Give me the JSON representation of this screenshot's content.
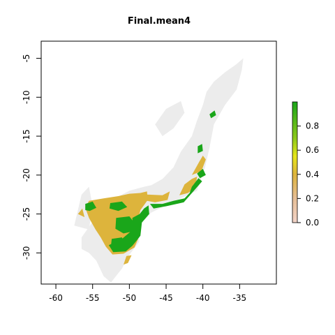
{
  "map": {
    "title": "Final.mean4",
    "x_axis": {
      "ticks": [
        -60,
        -55,
        -50,
        -45,
        -40,
        -35
      ],
      "labels": [
        "-60",
        "-55",
        "-50",
        "-45",
        "-40",
        "-35"
      ],
      "range": [
        -62,
        -30
      ]
    },
    "y_axis": {
      "ticks": [
        -5,
        -10,
        -15,
        -20,
        -25,
        -30
      ],
      "labels": [
        "-5",
        "-10",
        "-15",
        "-20",
        "-25",
        "-30"
      ],
      "range": [
        -34,
        -2.8
      ]
    }
  },
  "colorbar": {
    "range": [
      0.0,
      1.0
    ],
    "ticks": [
      "0.0",
      "0.2",
      "0.4",
      "0.6",
      "0.8"
    ],
    "colors": {
      "low": "#f2d3c8",
      "mid": "#ddb43c",
      "yellow": "#e6e61a",
      "high": "#1aa61a",
      "background_cell": "#ececec"
    }
  },
  "chart_data": {
    "type": "heatmap",
    "title": "Final.mean4",
    "xlabel": "",
    "ylabel": "",
    "xlim": [
      -62,
      -30
    ],
    "ylim": [
      -34,
      -2.8
    ],
    "value_range": [
      0.0,
      1.0
    ],
    "value_classes": [
      {
        "range": [
          0.0,
          0.05
        ],
        "color": "#ececec"
      },
      {
        "range": [
          0.3,
          0.5
        ],
        "color": "#ddb43c"
      },
      {
        "range": [
          0.8,
          1.0
        ],
        "color": "#1aa61a"
      }
    ],
    "regions": [
      {
        "value": 0.02,
        "points": [
          [
            -56.5,
            -28
          ],
          [
            -55,
            -26
          ],
          [
            -54,
            -24.5
          ],
          [
            -52,
            -23
          ],
          [
            -50,
            -22
          ],
          [
            -48,
            -21.5
          ],
          [
            -47,
            -21.3
          ],
          [
            -45.5,
            -20.5
          ],
          [
            -44,
            -19
          ],
          [
            -43,
            -17
          ],
          [
            -41.5,
            -15
          ],
          [
            -40.8,
            -13
          ],
          [
            -40,
            -11
          ],
          [
            -39.5,
            -9.3
          ],
          [
            -38.5,
            -8
          ],
          [
            -37,
            -6.8
          ],
          [
            -35.5,
            -5.8
          ],
          [
            -34.5,
            -5
          ],
          [
            -34.7,
            -6.5
          ],
          [
            -35.4,
            -9
          ],
          [
            -37,
            -11
          ],
          [
            -38.5,
            -13.5
          ],
          [
            -39.1,
            -16.5
          ],
          [
            -39.7,
            -19
          ],
          [
            -40.8,
            -22
          ],
          [
            -43.5,
            -23.2
          ],
          [
            -47,
            -24.8
          ],
          [
            -48.5,
            -26.3
          ],
          [
            -48.7,
            -28.6
          ],
          [
            -50.2,
            -30.5
          ],
          [
            -51,
            -32
          ],
          [
            -52.5,
            -33.8
          ],
          [
            -53.5,
            -33
          ],
          [
            -54.5,
            -31
          ],
          [
            -55.5,
            -30
          ],
          [
            -56.5,
            -29.5
          ]
        ]
      },
      {
        "value": 0.02,
        "points": [
          [
            -46.5,
            -13.5
          ],
          [
            -45,
            -11.5
          ],
          [
            -43,
            -10.5
          ],
          [
            -42.5,
            -12
          ],
          [
            -44,
            -14
          ],
          [
            -45.5,
            -15
          ]
        ]
      },
      {
        "value": 0.02,
        "points": [
          [
            -57.5,
            -26.5
          ],
          [
            -56.5,
            -22.5
          ],
          [
            -55.5,
            -21.5
          ],
          [
            -55,
            -24
          ],
          [
            -55.5,
            -27
          ]
        ]
      },
      {
        "value": 0.4,
        "points": [
          [
            -53.5,
            -23
          ],
          [
            -51.5,
            -22.7
          ],
          [
            -50,
            -22.4
          ],
          [
            -48.5,
            -22.3
          ],
          [
            -47.6,
            -22.1
          ],
          [
            -47.5,
            -23.2
          ],
          [
            -48.5,
            -24.5
          ],
          [
            -49,
            -26.5
          ],
          [
            -48.8,
            -28.2
          ],
          [
            -49.3,
            -29.3
          ],
          [
            -50.8,
            -30.1
          ],
          [
            -52.3,
            -30.2
          ],
          [
            -53.2,
            -29.2
          ],
          [
            -53.9,
            -28
          ],
          [
            -54.6,
            -27
          ],
          [
            -55.5,
            -25.5
          ],
          [
            -56,
            -24.2
          ],
          [
            -55.5,
            -23.3
          ]
        ]
      },
      {
        "value": 0.4,
        "points": [
          [
            -47.6,
            -22.5
          ],
          [
            -45.5,
            -22.6
          ],
          [
            -44.5,
            -22.1
          ],
          [
            -44.8,
            -23.2
          ],
          [
            -46.5,
            -23.5
          ],
          [
            -47.6,
            -23.3
          ]
        ]
      },
      {
        "value": 0.4,
        "points": [
          [
            -43.2,
            -22.6
          ],
          [
            -42.5,
            -21.2
          ],
          [
            -41.5,
            -20.5
          ],
          [
            -40.8,
            -20.2
          ],
          [
            -41,
            -21.5
          ],
          [
            -42,
            -22.3
          ]
        ]
      },
      {
        "value": 0.4,
        "points": [
          [
            -41.5,
            -20
          ],
          [
            -40.5,
            -18.3
          ],
          [
            -40,
            -17.5
          ],
          [
            -39.6,
            -18
          ],
          [
            -40.2,
            -19.5
          ]
        ]
      },
      {
        "value": 0.4,
        "points": [
          [
            -49.7,
            -30.3
          ],
          [
            -50.2,
            -31.3
          ],
          [
            -50.8,
            -31.5
          ],
          [
            -50.4,
            -30.4
          ]
        ]
      },
      {
        "value": 0.4,
        "points": [
          [
            -57,
            -25
          ],
          [
            -56.4,
            -24.3
          ],
          [
            -56.1,
            -25.4
          ]
        ]
      },
      {
        "value": 0.9,
        "points": [
          [
            -48,
            -24.3
          ],
          [
            -47.4,
            -23.9
          ],
          [
            -47.3,
            -25
          ],
          [
            -48.3,
            -26.1
          ],
          [
            -48.5,
            -27.8
          ],
          [
            -49,
            -28.4
          ],
          [
            -49.6,
            -29.1
          ],
          [
            -50.5,
            -29.8
          ],
          [
            -52.2,
            -29.9
          ],
          [
            -52.8,
            -29
          ],
          [
            -51,
            -28.2
          ],
          [
            -49.5,
            -27
          ],
          [
            -49.6,
            -25.5
          ],
          [
            -48.6,
            -25
          ]
        ]
      },
      {
        "value": 0.9,
        "points": [
          [
            -47.2,
            -23.7
          ],
          [
            -45.5,
            -23.7
          ],
          [
            -44,
            -23.3
          ],
          [
            -42.5,
            -23
          ],
          [
            -41.8,
            -22.3
          ],
          [
            -41.5,
            -21.5
          ],
          [
            -40.6,
            -20.4
          ],
          [
            -40.1,
            -20.8
          ],
          [
            -41.3,
            -22.1
          ],
          [
            -42.6,
            -23.5
          ],
          [
            -45,
            -24
          ],
          [
            -46.7,
            -24.3
          ]
        ]
      },
      {
        "value": 0.9,
        "points": [
          [
            -51.8,
            -25.5
          ],
          [
            -50,
            -25.3
          ],
          [
            -49.1,
            -26.4
          ],
          [
            -49.4,
            -27.2
          ],
          [
            -50.8,
            -27.5
          ],
          [
            -51.9,
            -26.9
          ]
        ]
      },
      {
        "value": 0.9,
        "points": [
          [
            -52.4,
            -28.2
          ],
          [
            -51,
            -28
          ],
          [
            -50.6,
            -29
          ],
          [
            -51.7,
            -29.5
          ],
          [
            -52.5,
            -29.1
          ]
        ]
      },
      {
        "value": 0.9,
        "points": [
          [
            -52.6,
            -23.6
          ],
          [
            -51,
            -23.4
          ],
          [
            -50.3,
            -24.1
          ],
          [
            -51.5,
            -24.6
          ],
          [
            -52.7,
            -24.3
          ]
        ]
      },
      {
        "value": 0.9,
        "points": [
          [
            -56,
            -23.7
          ],
          [
            -55,
            -23.4
          ],
          [
            -54.5,
            -24.2
          ],
          [
            -55.4,
            -24.6
          ],
          [
            -56,
            -24.5
          ]
        ]
      },
      {
        "value": 0.9,
        "points": [
          [
            -40.8,
            -19.8
          ],
          [
            -40,
            -19.2
          ],
          [
            -39.6,
            -20
          ],
          [
            -40.4,
            -20.4
          ]
        ]
      },
      {
        "value": 0.9,
        "points": [
          [
            -40.7,
            -16.3
          ],
          [
            -40.1,
            -16
          ],
          [
            -40,
            -16.9
          ],
          [
            -40.7,
            -17.2
          ]
        ]
      },
      {
        "value": 0.9,
        "points": [
          [
            -39.1,
            -12.2
          ],
          [
            -38.4,
            -11.7
          ],
          [
            -38.2,
            -12.3
          ],
          [
            -38.9,
            -12.7
          ]
        ]
      }
    ]
  }
}
